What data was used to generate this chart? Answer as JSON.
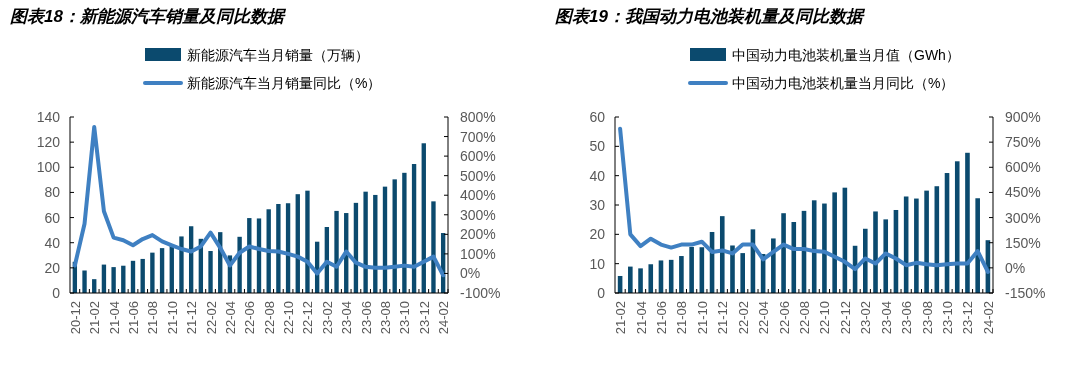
{
  "chart_data": [
    {
      "type": "bar",
      "title": "图表18：新能源汽车销量及同比数据",
      "legend": "top",
      "categories": [
        "20-12",
        null,
        "21-02",
        null,
        "21-04",
        null,
        "21-06",
        null,
        "21-08",
        null,
        "21-10",
        null,
        "21-12",
        null,
        "22-02",
        null,
        "22-04",
        null,
        "22-06",
        null,
        "22-08",
        null,
        "22-10",
        null,
        "22-12",
        null,
        "23-02",
        null,
        "23-04",
        null,
        "23-06",
        null,
        "23-08",
        null,
        "23-10",
        null,
        "23-12",
        null,
        "24-02"
      ],
      "series": [
        {
          "name": "新能源汽车当月销量（万辆）",
          "color": "#0b4a6e",
          "values": [
            24.8,
            17.9,
            11.0,
            22.6,
            20.6,
            21.7,
            25.6,
            27.1,
            32.1,
            35.7,
            38.3,
            45.0,
            53.1,
            43.1,
            33.4,
            48.4,
            29.9,
            44.7,
            59.6,
            59.3,
            66.6,
            70.8,
            71.4,
            78.6,
            81.4,
            40.8,
            52.5,
            65.3,
            63.6,
            71.7,
            80.6,
            78.0,
            84.6,
            90.4,
            95.6,
            102.6,
            119.1,
            72.9,
            47.7
          ]
        },
        {
          "name": "新能源汽车当月销量同比（%）",
          "type": "line",
          "axis": "y2",
          "color": "#3f80c2",
          "values": [
            41,
            254,
            749,
            318,
            183,
            170,
            144,
            176,
            196,
            164,
            144,
            125,
            112,
            138,
            209,
            131,
            41,
            106,
            138,
            125,
            115,
            112,
            100,
            86,
            60,
            0,
            60,
            34,
            112,
            55,
            34,
            29,
            29,
            34,
            40,
            34,
            60,
            86,
            -9
          ]
        }
      ],
      "ylim": [
        0,
        140
      ],
      "yticks": [
        0,
        20,
        40,
        60,
        80,
        100,
        120,
        140
      ],
      "y2lim": [
        -100,
        800
      ],
      "y2ticks": [
        {
          "value": -100,
          "label": "-100%"
        },
        {
          "value": 0,
          "label": "0%"
        },
        {
          "value": 100,
          "label": "100%"
        },
        {
          "value": 200,
          "label": "200%"
        },
        {
          "value": 300,
          "label": "300%"
        },
        {
          "value": 400,
          "label": "400%"
        },
        {
          "value": 500,
          "label": "500%"
        },
        {
          "value": 600,
          "label": "600%"
        },
        {
          "value": 700,
          "label": "700%"
        },
        {
          "value": 800,
          "label": "800%"
        }
      ],
      "grid": false
    },
    {
      "type": "bar",
      "title": "图表19：我国动力电池装机量及同比数据",
      "legend": "top",
      "categories": [
        "21-02",
        null,
        "21-04",
        null,
        "21-06",
        null,
        "21-08",
        null,
        "21-10",
        null,
        "21-12",
        null,
        "22-02",
        null,
        "22-04",
        null,
        "22-06",
        null,
        "22-08",
        null,
        "22-10",
        null,
        "22-12",
        null,
        "23-02",
        null,
        "23-04",
        null,
        "23-06",
        null,
        "23-08",
        null,
        "23-10",
        null,
        "23-12",
        null,
        "24-02"
      ],
      "series": [
        {
          "name": "中国动力电池装机量当月值（GWh）",
          "color": "#0b4a6e",
          "values": [
            5.8,
            9.0,
            8.4,
            9.8,
            11.1,
            11.3,
            12.6,
            15.7,
            15.6,
            20.8,
            26.2,
            16.2,
            13.6,
            21.7,
            13.3,
            18.6,
            27.2,
            24.2,
            28.0,
            31.6,
            30.5,
            34.3,
            35.9,
            16.1,
            21.9,
            27.8,
            25.1,
            28.3,
            32.9,
            32.2,
            34.9,
            36.4,
            40.9,
            44.9,
            47.8,
            32.3,
            18.0
          ]
        },
        {
          "name": "中国动力电池装机量当月同比（%）",
          "type": "line",
          "axis": "y2",
          "color": "#3f80c2",
          "values": [
            830,
            200,
            130,
            174,
            139,
            121,
            139,
            139,
            156,
            95,
            104,
            86,
            139,
            139,
            51,
            95,
            139,
            112,
            112,
            100,
            96,
            66,
            36,
            -8,
            56,
            26,
            86,
            56,
            16,
            30,
            22,
            16,
            22,
            26,
            26,
            100,
            -24
          ]
        }
      ],
      "ylim": [
        0,
        60
      ],
      "yticks": [
        0,
        10,
        20,
        30,
        40,
        50,
        60
      ],
      "y2lim": [
        -150,
        900
      ],
      "y2ticks": [
        {
          "value": -150,
          "label": "-150%"
        },
        {
          "value": 0,
          "label": "0%"
        },
        {
          "value": 150,
          "label": "150%"
        },
        {
          "value": 300,
          "label": "300%"
        },
        {
          "value": 450,
          "label": "450%"
        },
        {
          "value": 600,
          "label": "600%"
        },
        {
          "value": 750,
          "label": "750%"
        },
        {
          "value": 900,
          "label": "900%"
        }
      ],
      "grid": false
    }
  ]
}
